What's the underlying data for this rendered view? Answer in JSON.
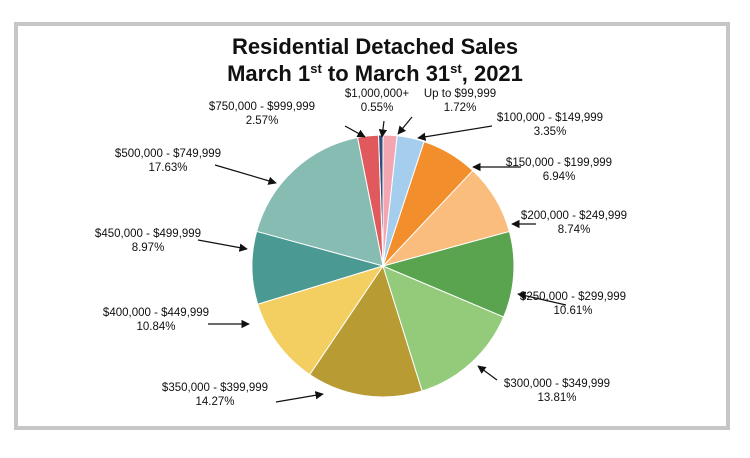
{
  "title": {
    "line1": "Residential Detached Sales",
    "line2_pre": "March 1",
    "line2_sup1": "st",
    "line2_mid": " to March 31",
    "line2_sup2": "st",
    "line2_post": ", 2021"
  },
  "chart_data": {
    "type": "pie",
    "title": "Residential Detached Sales March 1st to March 31st, 2021",
    "start": "12 o'clock",
    "direction": "counterclockwise",
    "slices": [
      {
        "label": "$1,000,000+",
        "value": 0.55,
        "display": "0.55%",
        "color": "#2f4f7c"
      },
      {
        "label": "$750,000 - $999,999",
        "value": 2.57,
        "display": "2.57%",
        "color": "#e05a5d"
      },
      {
        "label": "$500,000 - $749,999",
        "value": 17.63,
        "display": "17.63%",
        "color": "#87bcb3"
      },
      {
        "label": "$450,000 - $499,999",
        "value": 8.97,
        "display": "8.97%",
        "color": "#4a9992"
      },
      {
        "label": "$400,000 - $449,999",
        "value": 10.84,
        "display": "10.84%",
        "color": "#f3cf62"
      },
      {
        "label": "$350,000 - $399,999",
        "value": 14.27,
        "display": "14.27%",
        "color": "#b89b33"
      },
      {
        "label": "$300,000 - $349,999",
        "value": 13.81,
        "display": "13.81%",
        "color": "#93cb7b"
      },
      {
        "label": "$250,000 - $299,999",
        "value": 10.61,
        "display": "10.61%",
        "color": "#5aa34f"
      },
      {
        "label": "$200,000 - $249,999",
        "value": 8.74,
        "display": "8.74%",
        "color": "#fbbd7e"
      },
      {
        "label": "$150,000 - $199,999",
        "value": 6.94,
        "display": "6.94%",
        "color": "#f28e2b"
      },
      {
        "label": "$100,000 - $149,999",
        "value": 3.35,
        "display": "3.35%",
        "color": "#a4cdee"
      },
      {
        "label": "Up to $99,999",
        "value": 1.72,
        "display": "1.72%",
        "color": "#f4a6b0"
      }
    ]
  }
}
